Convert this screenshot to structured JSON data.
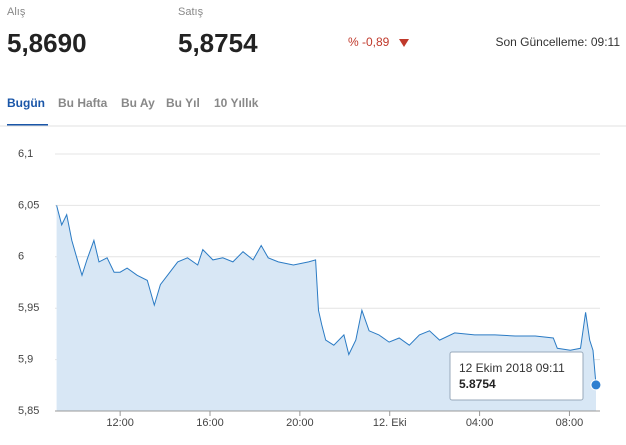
{
  "header": {
    "buy_label": "Alış",
    "buy_value": "5,8690",
    "sell_label": "Satış",
    "sell_value": "5,8754",
    "change": "% -0,89",
    "updated": "Son Güncelleme: 09:11"
  },
  "tabs": [
    "Bugün",
    "Bu Hafta",
    "Bu Ay",
    "Bu Yıl",
    "10 Yıllık"
  ],
  "chart_data": {
    "type": "area",
    "color": "#2b7bc4",
    "fill": "#d8e7f5",
    "grid": true,
    "x": [
      9.17,
      9.4,
      9.62,
      9.85,
      10.07,
      10.3,
      10.52,
      10.83,
      11.06,
      11.42,
      11.73,
      12,
      12.31,
      12.76,
      13.21,
      13.52,
      13.79,
      14.11,
      14.56,
      15.0,
      15.45,
      15.68,
      16.13,
      16.57,
      17.02,
      17.47,
      17.92,
      18.28,
      18.59,
      19.04,
      19.71,
      20.39,
      20.7,
      20.83,
      20.97,
      21.15,
      21.51,
      21.96,
      22.18,
      22.49,
      22.76,
      23.08,
      23.52,
      23.97,
      24.42,
      24.87,
      25.32,
      25.77,
      26.22,
      26.89,
      27.78,
      28.68,
      29.58,
      30.48,
      31.28,
      31.46,
      32.04,
      32.49,
      32.72,
      32.9,
      33.05,
      33.18
    ],
    "values": [
      6.05,
      6.031,
      6.041,
      6.016,
      5.999,
      5.982,
      5.997,
      6.016,
      5.995,
      5.999,
      5.985,
      5.985,
      5.989,
      5.982,
      5.977,
      5.953,
      5.973,
      5.982,
      5.995,
      5.999,
      5.992,
      6.007,
      5.997,
      5.999,
      5.995,
      6.005,
      5.997,
      6.011,
      5.999,
      5.995,
      5.992,
      5.995,
      5.997,
      5.948,
      5.934,
      5.919,
      5.914,
      5.924,
      5.905,
      5.919,
      5.948,
      5.928,
      5.924,
      5.917,
      5.921,
      5.914,
      5.924,
      5.928,
      5.919,
      5.926,
      5.924,
      5.924,
      5.923,
      5.923,
      5.921,
      5.911,
      5.909,
      5.911,
      5.946,
      5.919,
      5.909,
      5.8754
    ],
    "xlim": [
      9.1,
      33.36
    ],
    "ylim": [
      5.85,
      6.1
    ],
    "xticks": [
      {
        "value": 12,
        "label": "12:00"
      },
      {
        "value": 16,
        "label": "16:00"
      },
      {
        "value": 20,
        "label": "20:00"
      },
      {
        "value": 24,
        "label": "12. Eki"
      },
      {
        "value": 28,
        "label": "04:00"
      },
      {
        "value": 32,
        "label": "08:00"
      }
    ],
    "yticks": [
      {
        "value": 5.85,
        "label": "5,85"
      },
      {
        "value": 5.9,
        "label": "5,9"
      },
      {
        "value": 5.95,
        "label": "5,95"
      },
      6,
      {
        "value": 6.05,
        "label": "6,05"
      },
      {
        "value": 6.1,
        "label": "6,1"
      }
    ],
    "tooltip": {
      "date": "12 Ekim 2018 09:11",
      "value": "5.8754"
    }
  }
}
